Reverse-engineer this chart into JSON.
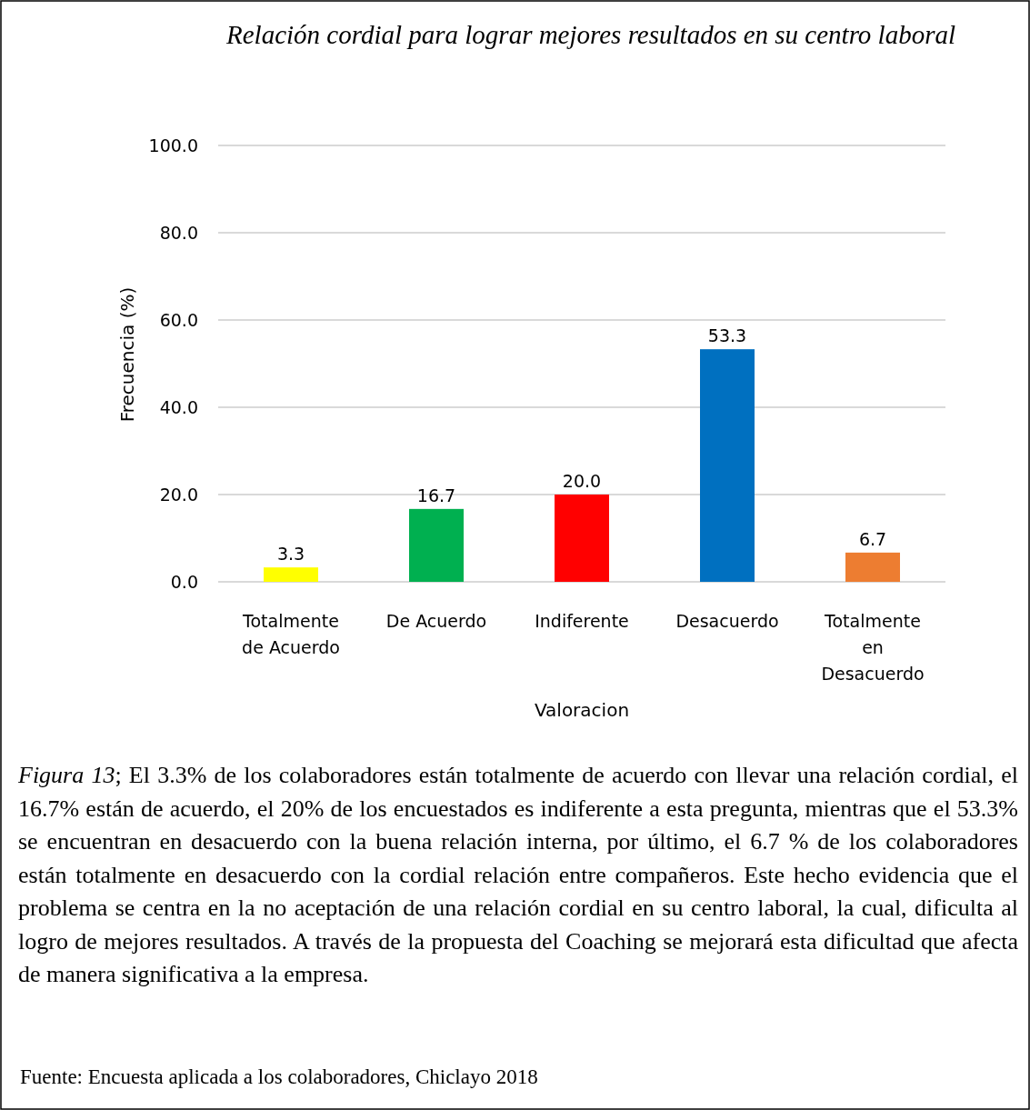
{
  "chart_data": {
    "type": "bar",
    "title": "Relación cordial para lograr mejores resultados en su centro laboral",
    "xlabel": "Valoracion",
    "ylabel": "Frecuencia (%)",
    "categories": [
      "Totalmente de Acuerdo",
      "De Acuerdo",
      "Indiferente",
      "Desacuerdo",
      "Totalmente en Desacuerdo"
    ],
    "values": [
      3.3,
      16.7,
      20.0,
      53.3,
      6.7
    ],
    "colors": [
      "#ffff00",
      "#00b050",
      "#ff0000",
      "#0070c0",
      "#ed7d31"
    ],
    "value_labels": [
      "3.3",
      "16.7",
      "20.0",
      "53.3",
      "6.7"
    ],
    "ylim": [
      0,
      100
    ],
    "yticks": [
      {
        "value": 0,
        "label": "0.0"
      },
      {
        "value": 20,
        "label": "20.0"
      },
      {
        "value": 40,
        "label": "40.0"
      },
      {
        "value": 60,
        "label": "60.0"
      },
      {
        "value": 80,
        "label": "80.0"
      },
      {
        "value": 100,
        "label": "100.0"
      }
    ],
    "grid": "y",
    "annotations": [
      "Figura 13; El 3.3% de los colaboradores están totalmente de acuerdo con llevar una relación cordial, el 16.7% están de acuerdo, el 20% de los encuestados es indiferente a esta pregunta, mientras que el 53.3% se encuentran en desacuerdo con la buena relación interna, por último, el 6.7 % de los colaboradores están totalmente en desacuerdo con la cordial relación entre compañeros. Este hecho evidencia que el problema se centra en la no aceptación de una relación cordial en su centro laboral, la cual, dificulta al logro de mejores resultados. A través de la propuesta del Coaching se mejorará esta dificultad que afecta de manera significativa a la empresa.",
      "Fuente: Encuesta aplicada a los colaboradores, Chiclayo 2018"
    ]
  }
}
